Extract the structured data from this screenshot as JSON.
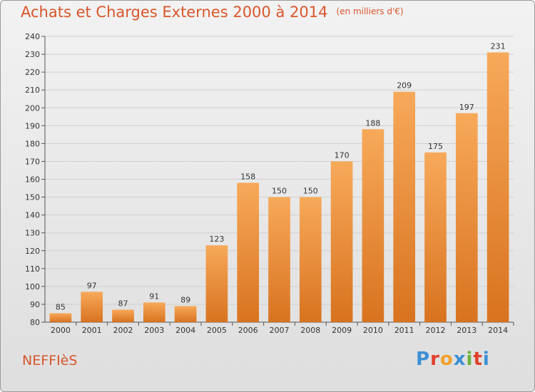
{
  "title": "Achats et Charges Externes 2000 à 2014",
  "unit": "(en milliers d'€)",
  "commune": "NEFFIèS",
  "logo": {
    "letters": [
      "P",
      "r",
      "o",
      "x",
      "i",
      "t",
      "i"
    ],
    "colors": [
      "#3b8fd6",
      "#e0402a",
      "#f2a12a",
      "#3b8fd6",
      "#6bb33a",
      "#e0402a",
      "#3b8fd6"
    ]
  },
  "colors": {
    "bar_light": "#f7a95a",
    "bar_dark": "#d8731f",
    "title": "#d9562b",
    "grid": "#cfcfcf"
  },
  "chart_data": {
    "type": "bar",
    "title": "Achats et Charges Externes 2000 à 2014",
    "xlabel": "",
    "ylabel": "",
    "categories": [
      "2000",
      "2001",
      "2002",
      "2003",
      "2004",
      "2005",
      "2006",
      "2007",
      "2008",
      "2009",
      "2010",
      "2011",
      "2012",
      "2013",
      "2014"
    ],
    "values": [
      85,
      97,
      87,
      91,
      89,
      123,
      158,
      150,
      150,
      170,
      188,
      209,
      175,
      197,
      231
    ],
    "ylim": [
      80,
      240
    ],
    "yticks": [
      80,
      90,
      100,
      110,
      120,
      130,
      140,
      150,
      160,
      170,
      180,
      190,
      200,
      210,
      220,
      230,
      240
    ],
    "grid": true,
    "data_labels": true
  }
}
